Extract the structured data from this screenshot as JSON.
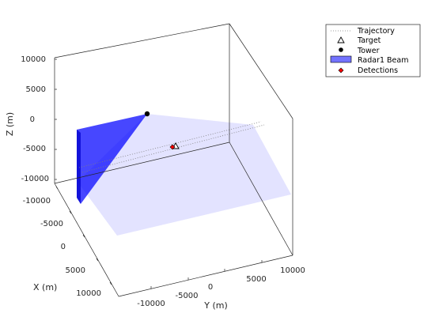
{
  "chart_data": {
    "type": "scatter",
    "projection": "3d",
    "xlabel": "X (m)",
    "ylabel": "Y (m)",
    "zlabel": "Z (m)",
    "x_ticks": [
      "-10000",
      "-5000",
      "0",
      "5000",
      "10000"
    ],
    "y_ticks": [
      "-10000",
      "-5000",
      "0",
      "5000",
      "10000"
    ],
    "z_ticks": [
      "-10000",
      "-5000",
      "0",
      "5000",
      "10000"
    ],
    "legend_position": "top-right",
    "legend": [
      {
        "label": "Trajectory",
        "marker": "dotted-line",
        "color": "#7f7f7f"
      },
      {
        "label": "Target",
        "marker": "triangle-open",
        "color": "#000000"
      },
      {
        "label": "Tower",
        "marker": "circle-filled",
        "color": "#000000"
      },
      {
        "label": "Radar1 Beam",
        "marker": "patch",
        "color": "#0000ff"
      },
      {
        "label": "Detections",
        "marker": "diamond-filled",
        "color": "#ff0000"
      }
    ],
    "colors": {
      "beam": "#0000ff",
      "coverage": "#0000ff",
      "detection": "#ff0000",
      "tower": "#000000",
      "trajectory": "#7f7f7f"
    }
  }
}
